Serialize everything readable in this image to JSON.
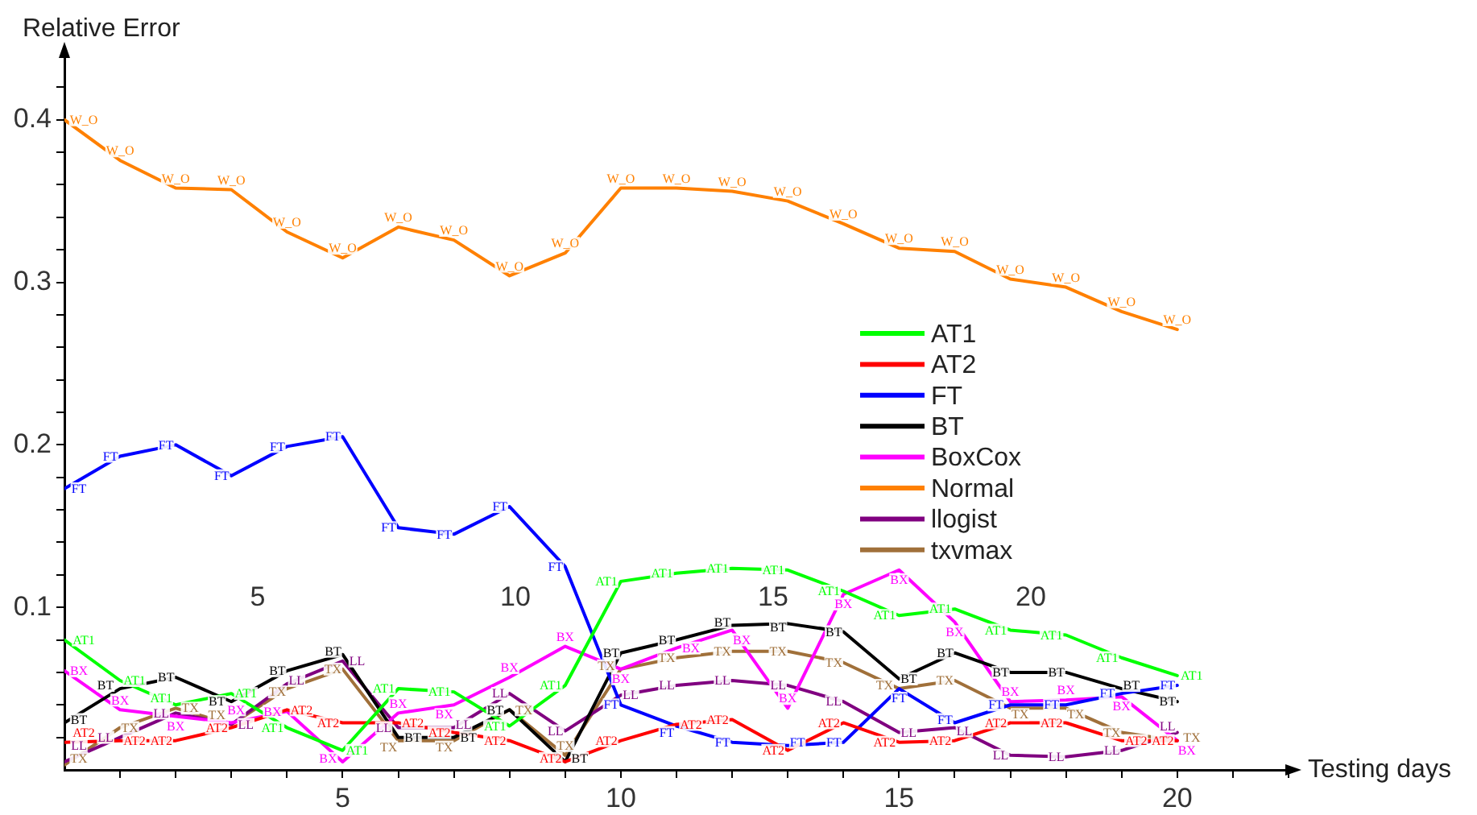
{
  "chart_data": {
    "type": "line",
    "xlabel": "Testing days",
    "ylabel": "Relative Error",
    "legend": "right",
    "x": [
      0,
      1,
      2,
      3,
      4,
      5,
      6,
      7,
      8,
      9,
      10,
      11,
      12,
      13,
      14,
      15,
      16,
      17,
      18,
      19,
      20
    ],
    "xlim": [
      0,
      22
    ],
    "xticks": [
      {
        "value": 1,
        "label": null
      },
      {
        "value": 2,
        "label": null
      },
      {
        "value": 3,
        "label": null
      },
      {
        "value": 4,
        "label": null
      },
      5,
      {
        "value": 6,
        "label": null
      },
      {
        "value": 7,
        "label": null
      },
      {
        "value": 8,
        "label": null
      },
      {
        "value": 9,
        "label": null
      },
      10,
      {
        "value": 11,
        "label": null
      },
      {
        "value": 12,
        "label": null
      },
      {
        "value": 13,
        "label": null
      },
      {
        "value": 14,
        "label": null
      },
      15,
      {
        "value": 16,
        "label": null
      },
      {
        "value": 17,
        "label": null
      },
      {
        "value": 18,
        "label": null
      },
      {
        "value": 19,
        "label": null
      },
      20,
      {
        "value": 21,
        "label": null
      },
      {
        "value": 22,
        "label": null
      }
    ],
    "x2lim": [
      1.25,
      25
    ],
    "x2ticks": [
      5,
      10,
      15,
      20
    ],
    "ylim": [
      0,
      0.44
    ],
    "yticks": [
      {
        "value": 0.02,
        "label": null
      },
      {
        "value": 0.04,
        "label": null
      },
      {
        "value": 0.06,
        "label": null
      },
      {
        "value": 0.08,
        "label": null
      },
      0.1,
      {
        "value": 0.12,
        "label": null
      },
      {
        "value": 0.14,
        "label": null
      },
      {
        "value": 0.16,
        "label": null
      },
      {
        "value": 0.18,
        "label": null
      },
      0.2,
      {
        "value": 0.22,
        "label": null
      },
      {
        "value": 0.24,
        "label": null
      },
      {
        "value": 0.26,
        "label": null
      },
      {
        "value": 0.28,
        "label": null
      },
      0.3,
      {
        "value": 0.32,
        "label": null
      },
      {
        "value": 0.34,
        "label": null
      },
      {
        "value": 0.36,
        "label": null
      },
      {
        "value": 0.38,
        "label": null
      },
      0.4,
      {
        "value": 0.42,
        "label": null
      }
    ],
    "series": [
      {
        "name": "AT1",
        "color": "#00ff00",
        "values": [
          0.08,
          0.055,
          0.04,
          0.047,
          0.026,
          0.012,
          0.05,
          0.048,
          0.027,
          0.052,
          0.116,
          0.121,
          0.124,
          0.123,
          0.11,
          0.095,
          0.099,
          0.086,
          0.083,
          0.069,
          0.058
        ],
        "value_labels": [
          "AT1",
          "AT1",
          "AT1",
          "AT1",
          "AT1",
          "AT1",
          "AT1",
          "AT1",
          "AT1",
          "AT1",
          "AT1",
          "AT1",
          "AT1",
          "AT1",
          "AT1",
          "AT1",
          "AT1",
          "AT1",
          "AT1",
          "AT1",
          "AT1"
        ]
      },
      {
        "name": "AT2",
        "color": "#ff0000",
        "values": [
          0.017,
          0.018,
          0.018,
          0.026,
          0.037,
          0.029,
          0.029,
          0.023,
          0.018,
          0.005,
          0.018,
          0.028,
          0.031,
          0.012,
          0.029,
          0.017,
          0.018,
          0.029,
          0.029,
          0.018,
          0.018
        ],
        "value_labels": [
          "AT2",
          "AT2",
          "AT2",
          "AT2",
          "AT2",
          "AT2",
          "AT2",
          "AT2",
          "AT2",
          "AT2",
          "AT2",
          "AT2",
          "AT2",
          "AT2",
          "AT2",
          "AT2",
          "AT2",
          "AT2",
          "AT2",
          "AT2",
          "AT2"
        ]
      },
      {
        "name": "FT",
        "color": "#0000ff",
        "values": [
          0.173,
          0.193,
          0.2,
          0.181,
          0.199,
          0.205,
          0.149,
          0.145,
          0.162,
          0.125,
          0.04,
          0.027,
          0.017,
          0.015,
          0.017,
          0.05,
          0.029,
          0.04,
          0.04,
          0.047,
          0.052
        ],
        "value_labels": [
          "FT",
          "FT",
          "FT",
          "FT",
          "FT",
          "FT",
          "FT",
          "FT",
          "FT",
          "FT",
          "FT",
          "FT",
          "FT",
          "FT",
          "FT",
          "FT",
          "FT",
          "FT",
          "FT",
          "FT",
          "FT"
        ]
      },
      {
        "name": "BT",
        "color": "#000000",
        "values": [
          0.029,
          0.05,
          0.057,
          0.042,
          0.061,
          0.071,
          0.02,
          0.02,
          0.037,
          0.005,
          0.072,
          0.08,
          0.089,
          0.09,
          0.085,
          0.056,
          0.072,
          0.06,
          0.06,
          0.05,
          0.042
        ],
        "value_labels": [
          "BT",
          "BT",
          "BT",
          "BT",
          "BT",
          "BT",
          "BT",
          "BT",
          "BT",
          "BT",
          "BT",
          "BT",
          "BT",
          "BT",
          "BT",
          "BT",
          "BT",
          "BT",
          "BT",
          "BT",
          "BT"
        ]
      },
      {
        "name": "BoxCox",
        "color": "#ff00ff",
        "values": [
          0.061,
          0.037,
          0.033,
          0.029,
          0.036,
          0.005,
          0.035,
          0.04,
          0.057,
          0.076,
          0.062,
          0.075,
          0.086,
          0.038,
          0.108,
          0.123,
          0.091,
          0.042,
          0.043,
          0.045,
          0.018
        ],
        "value_labels": [
          "BX",
          "BX",
          "BX",
          "BX",
          "BX",
          "BX",
          "BX",
          "BX",
          "BX",
          "BX",
          "BX",
          "BX",
          "BX",
          "BX",
          "BX",
          "BX",
          "BX",
          "BX",
          "BX",
          "BX",
          "BX"
        ]
      },
      {
        "name": "Normal",
        "color": "#ff8000",
        "values": [
          0.4,
          0.375,
          0.358,
          0.357,
          0.331,
          0.315,
          0.334,
          0.326,
          0.304,
          0.318,
          0.358,
          0.358,
          0.356,
          0.35,
          0.336,
          0.321,
          0.319,
          0.302,
          0.297,
          0.282,
          0.271
        ],
        "value_labels": [
          "W_O",
          "W_O",
          "W_O",
          "W_O",
          "W_O",
          "W_O",
          "W_O",
          "W_O",
          "W_O",
          "W_O",
          "W_O",
          "W_O",
          "W_O",
          "W_O",
          "W_O",
          "W_O",
          "W_O",
          "W_O",
          "W_O",
          "W_O",
          "W_O"
        ]
      },
      {
        "name": "llogist",
        "color": "#800080",
        "values": [
          0.005,
          0.02,
          0.035,
          0.028,
          0.053,
          0.067,
          0.026,
          0.026,
          0.047,
          0.024,
          0.046,
          0.052,
          0.055,
          0.052,
          0.042,
          0.023,
          0.026,
          0.009,
          0.008,
          0.012,
          0.023
        ],
        "value_labels": [
          "LL",
          "LL",
          "LL",
          "LL",
          "LL",
          "LL",
          "LL",
          "LL",
          "LL",
          "LL",
          "LL",
          "LL",
          "LL",
          "LL",
          "LL",
          "LL",
          "LL",
          "LL",
          "LL",
          "LL",
          "LL"
        ]
      },
      {
        "name": "txvmax",
        "color": "#a0703a",
        "values": [
          0.003,
          0.026,
          0.038,
          0.028,
          0.05,
          0.062,
          0.018,
          0.018,
          0.037,
          0.009,
          0.062,
          0.069,
          0.073,
          0.073,
          0.066,
          0.05,
          0.055,
          0.038,
          0.038,
          0.023,
          0.018
        ],
        "value_labels": [
          "TX",
          "TX",
          "TX",
          "TX",
          "TX",
          "TX",
          "TX",
          "TX",
          "TX",
          "TX",
          "TX",
          "TX",
          "TX",
          "TX",
          "TX",
          "TX",
          "TX",
          "TX",
          "TX",
          "TX",
          "TX"
        ]
      }
    ]
  }
}
